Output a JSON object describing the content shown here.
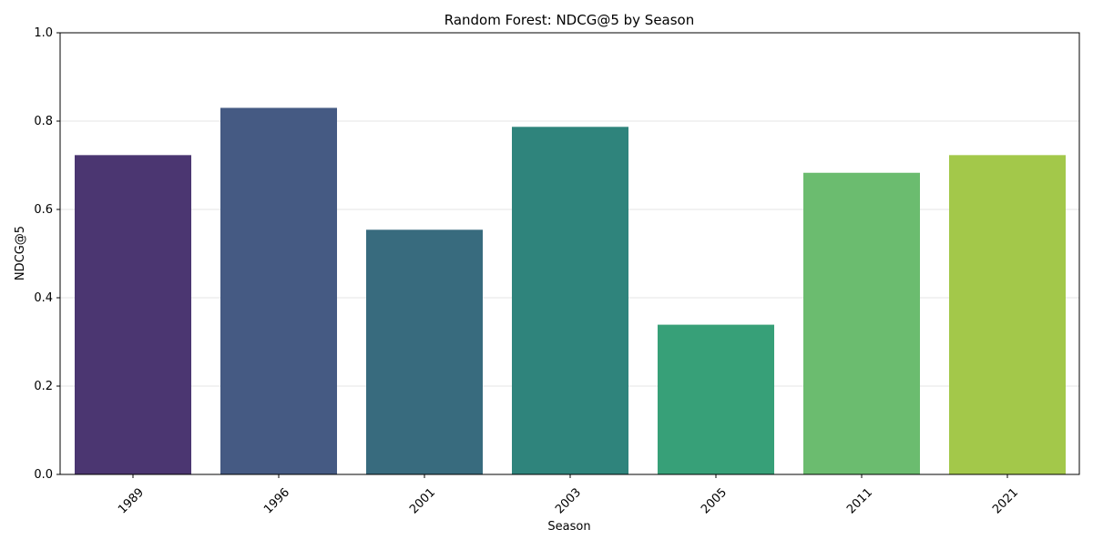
{
  "chart_data": {
    "type": "bar",
    "title": "Random Forest: NDCG@5 by Season",
    "xlabel": "Season",
    "ylabel": "NDCG@5",
    "categories": [
      "1989",
      "1996",
      "2001",
      "2003",
      "2005",
      "2011",
      "2021"
    ],
    "values": [
      0.723,
      0.83,
      0.554,
      0.787,
      0.339,
      0.683,
      0.723
    ],
    "colors": [
      "#4b3671",
      "#455a83",
      "#386b7e",
      "#2f847c",
      "#37a078",
      "#6bbc6f",
      "#a3c84a"
    ],
    "ylim": [
      0,
      1.0
    ],
    "yticks": [
      "0.0",
      "0.2",
      "0.4",
      "0.6",
      "0.8",
      "1.0"
    ],
    "grid": "y-axis, light",
    "legend": "none"
  }
}
